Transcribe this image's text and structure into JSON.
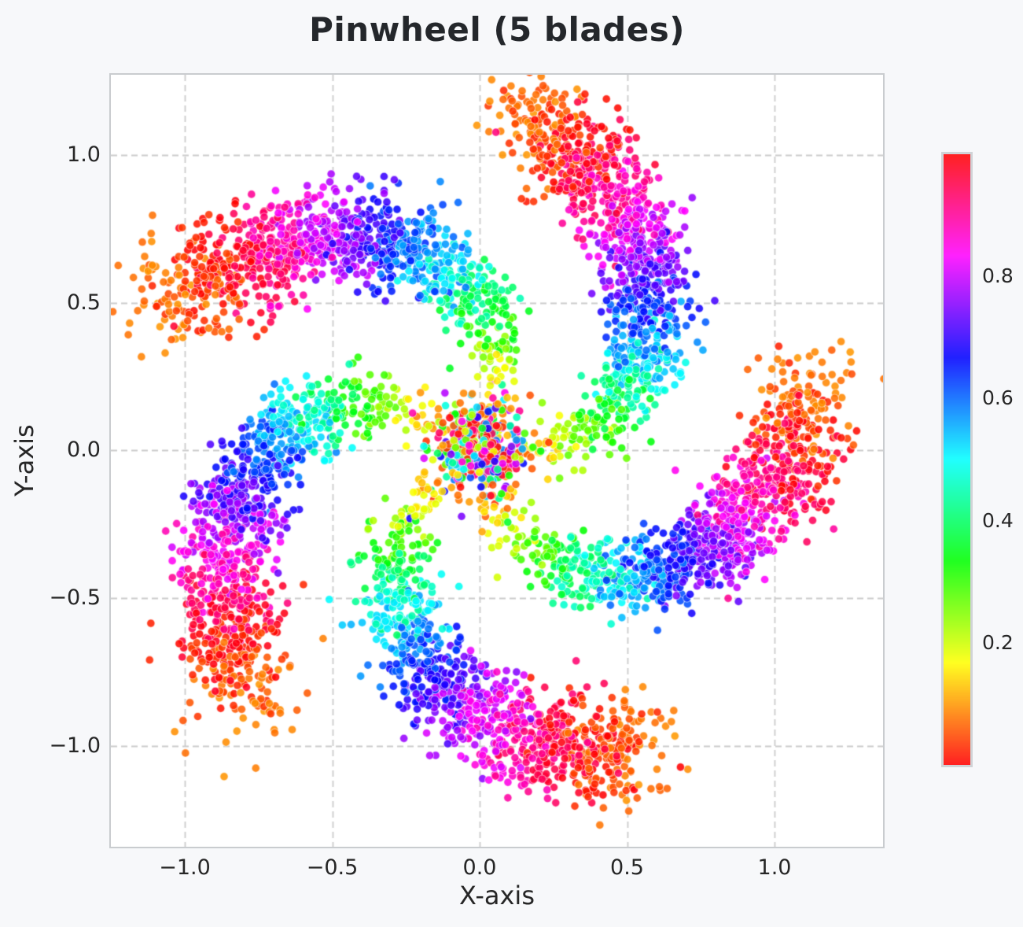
{
  "colors": {
    "figure_bg": "#f7f8fa",
    "axes_bg": "#ffffff",
    "grid": "#cccccc",
    "spine": "#c9cccf",
    "text": "#262626",
    "title": "#24272b"
  },
  "chart_data": {
    "type": "scatter",
    "title": "Pinwheel (5 blades)",
    "xlabel": "X-axis",
    "ylabel": "Y-axis",
    "xlim": [
      -1.2507,
      1.368
    ],
    "ylim": [
      -1.3409,
      1.2716
    ],
    "x_ticks": {
      "values": [
        -1.0,
        -0.5,
        0.0,
        0.5,
        1.0
      ],
      "labels": [
        "−1.0",
        "−0.5",
        "0.0",
        "0.5",
        "1.0"
      ]
    },
    "y_ticks": {
      "values": [
        -1.0,
        -0.5,
        0.0,
        0.5,
        1.0
      ],
      "labels": [
        "−1.0",
        "−0.5",
        "0.0",
        "0.5",
        "1.0"
      ]
    },
    "grid": {
      "visible": true,
      "style": "dashed",
      "dash": [
        8,
        5
      ],
      "line_width": 1.8
    },
    "colormap": "hsv",
    "color_rule": "hue = position t along blade, cyclic mod 1 (t>1 wraps to red/orange beyond tips)",
    "point_alpha": 0.87,
    "point_radius_px": 5.1,
    "point_edge": "rgba(255,255,255,0.5)",
    "n_blades": 5,
    "points_per_blade": 1100,
    "core_points_per_blade": 60,
    "seed": 1337,
    "blades": {
      "base_angles_deg": [
        285,
        357,
        69,
        141,
        213
      ],
      "swirl_deg": 76,
      "swirl_exp": 1.3,
      "radius_scale": 1.06,
      "radius_exp": 0.78,
      "t_mean": 1.0,
      "t_std": 0.42,
      "t_min": -0.08,
      "t_max": 1.1,
      "noise_base": 0.042,
      "noise_slope": 0.048,
      "core_sigma": 0.085
    },
    "colorbar": {
      "min": 0,
      "max": 1,
      "tick_values": [
        0.2,
        0.4,
        0.6,
        0.8
      ],
      "tick_labels": [
        "0.2",
        "0.4",
        "0.6",
        "0.8"
      ],
      "position": "right"
    }
  }
}
